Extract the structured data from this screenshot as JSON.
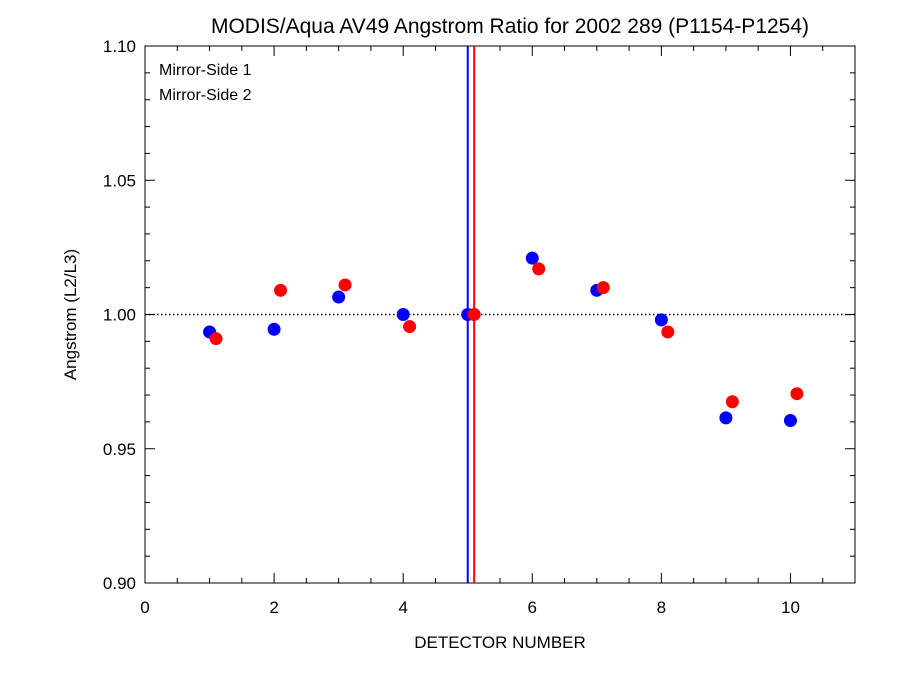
{
  "chart_data": {
    "type": "scatter",
    "title": "MODIS/Aqua AV49 Angstrom Ratio for 2002 289 (P1154-P1254)",
    "xlabel": "DETECTOR NUMBER",
    "ylabel": "Angstrom (L2/L3)",
    "xlim": [
      0,
      11
    ],
    "ylim": [
      0.9,
      1.1
    ],
    "x_ticks": [
      "0",
      "2",
      "4",
      "6",
      "8",
      "10"
    ],
    "y_ticks": [
      "0.90",
      "0.95",
      "1.00",
      "1.05",
      "1.10"
    ],
    "reference_line_y": 1.0,
    "legend_placement": "top-left",
    "series": [
      {
        "name": "Mirror-Side 1",
        "color": "#0000ff",
        "x": [
          1,
          2,
          3,
          4,
          5,
          6,
          7,
          8,
          9,
          10
        ],
        "y": [
          0.9935,
          0.9945,
          1.0065,
          1.0,
          1.0,
          1.021,
          1.009,
          0.998,
          0.9615,
          0.9605
        ],
        "vline_x": 5.0
      },
      {
        "name": "Mirror-Side 2",
        "color": "#ff0000",
        "x": [
          1.1,
          2.1,
          3.1,
          4.1,
          5.1,
          6.1,
          7.1,
          8.1,
          9.1,
          10.1
        ],
        "y": [
          0.991,
          1.009,
          1.011,
          0.9955,
          1.0,
          1.017,
          1.01,
          0.9935,
          0.9675,
          0.9705
        ],
        "vline_x": 5.1
      }
    ]
  }
}
